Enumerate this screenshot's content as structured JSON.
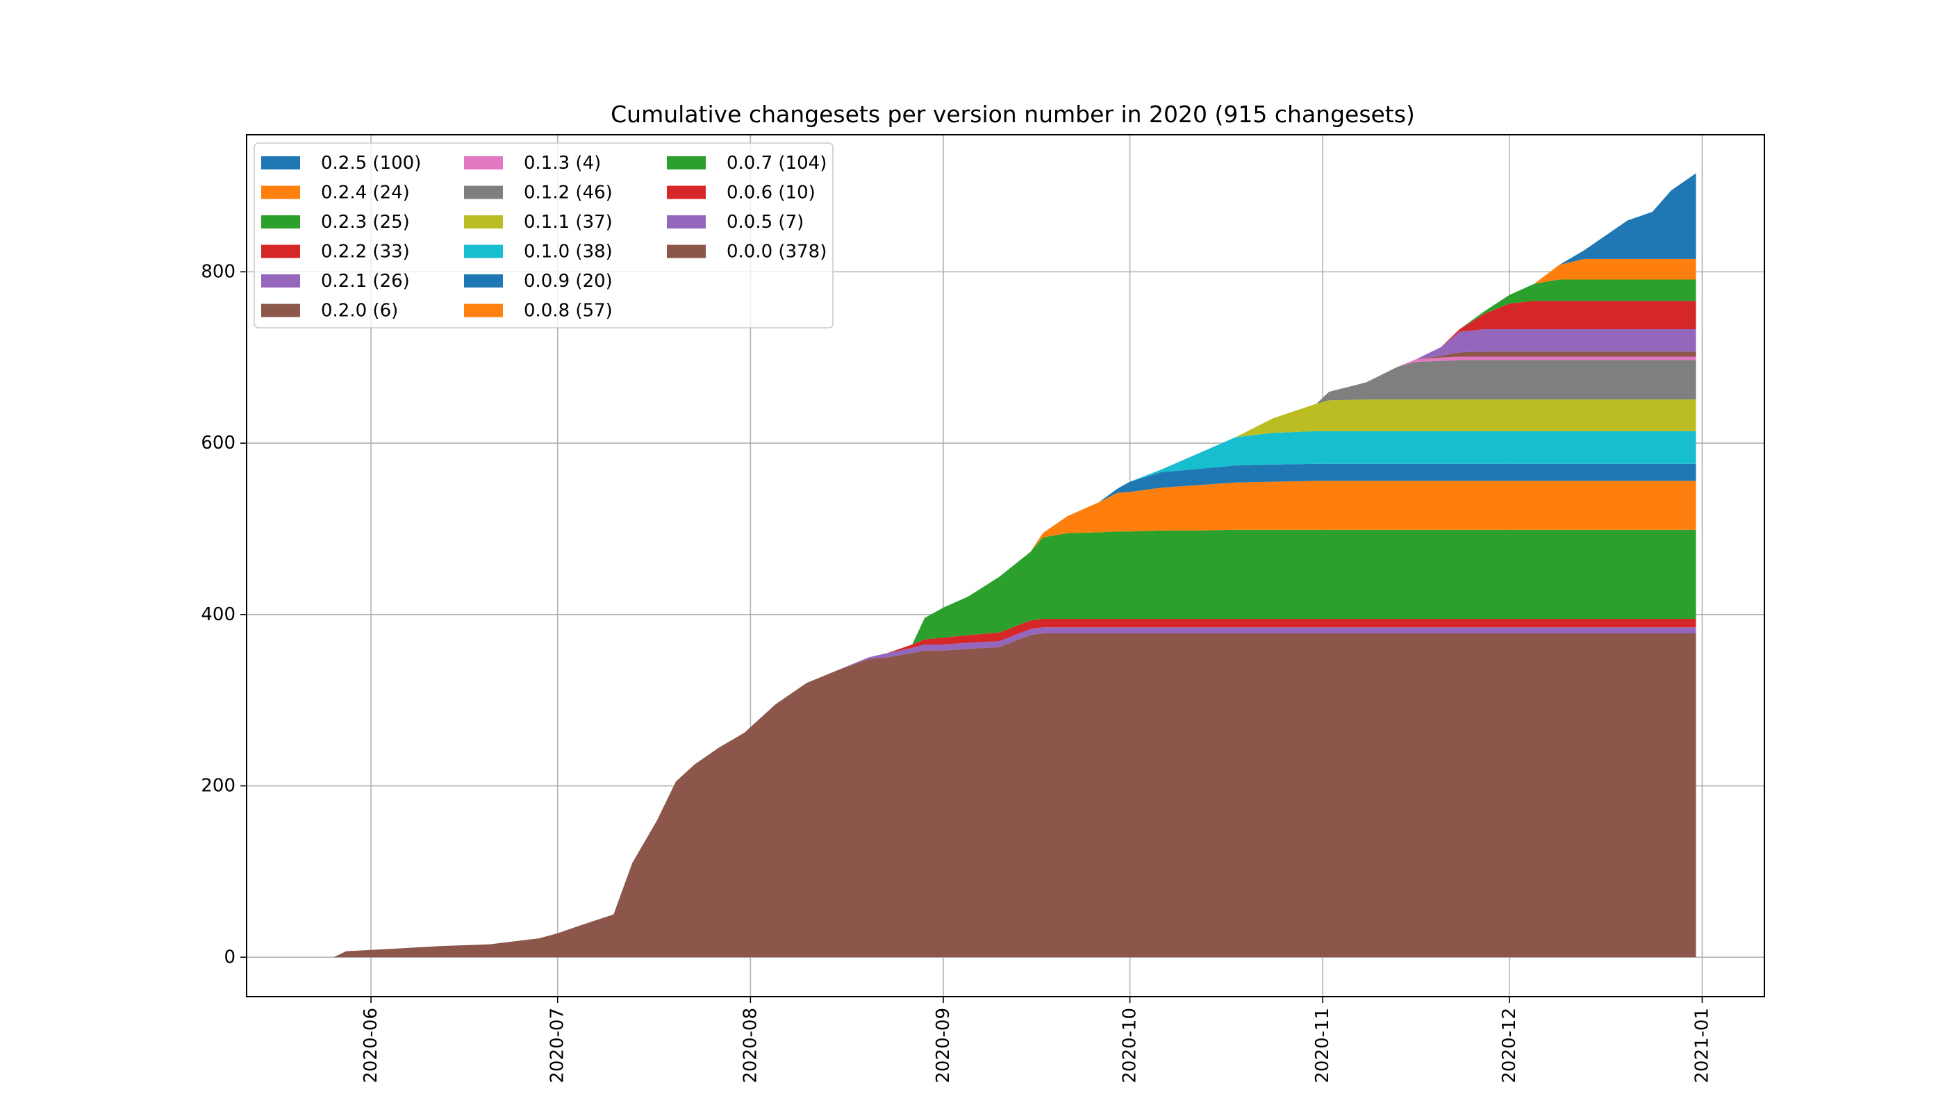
{
  "chart_data": {
    "type": "area",
    "stacked": true,
    "title": "Cumulative changesets per version number in 2020 (915 changesets)",
    "xlabel": "",
    "ylabel": "",
    "x_type": "date",
    "xlim": [
      "2020-05-12",
      "2021-01-11"
    ],
    "ylim": [
      -46,
      960
    ],
    "x_ticks": [
      "2020-06-01",
      "2020-07-01",
      "2020-08-01",
      "2020-09-01",
      "2020-10-01",
      "2020-11-01",
      "2020-12-01",
      "2021-01-01"
    ],
    "x_tick_labels": [
      "2020-06",
      "2020-07",
      "2020-08",
      "2020-09",
      "2020-10",
      "2020-11",
      "2020-12",
      "2021-01"
    ],
    "y_ticks": [
      0,
      200,
      400,
      600,
      800
    ],
    "y_tick_labels": [
      "0",
      "200",
      "400",
      "600",
      "800"
    ],
    "grid": true,
    "legend_position": "top-left",
    "legend_columns": 3,
    "x": [
      "2020-05-26",
      "2020-05-28",
      "2020-06-05",
      "2020-06-12",
      "2020-06-20",
      "2020-06-28",
      "2020-07-01",
      "2020-07-05",
      "2020-07-10",
      "2020-07-13",
      "2020-07-17",
      "2020-07-20",
      "2020-07-23",
      "2020-07-27",
      "2020-07-31",
      "2020-08-05",
      "2020-08-10",
      "2020-08-15",
      "2020-08-20",
      "2020-08-23",
      "2020-08-27",
      "2020-08-29",
      "2020-09-01",
      "2020-09-05",
      "2020-09-10",
      "2020-09-15",
      "2020-09-17",
      "2020-09-21",
      "2020-09-26",
      "2020-09-29",
      "2020-10-01",
      "2020-10-06",
      "2020-10-12",
      "2020-10-18",
      "2020-10-24",
      "2020-10-31",
      "2020-11-02",
      "2020-11-08",
      "2020-11-13",
      "2020-11-16",
      "2020-11-20",
      "2020-11-23",
      "2020-11-27",
      "2020-12-01",
      "2020-12-05",
      "2020-12-09",
      "2020-12-13",
      "2020-12-17",
      "2020-12-20",
      "2020-12-24",
      "2020-12-27",
      "2020-12-31"
    ],
    "series": [
      {
        "name": "0.0.0 (378)",
        "color": "#8c564b",
        "values": [
          0,
          7,
          10,
          13,
          15,
          22,
          28,
          38,
          50,
          110,
          160,
          205,
          225,
          245,
          262,
          295,
          320,
          335,
          348,
          350,
          355,
          358,
          358,
          360,
          362,
          376,
          378,
          378,
          378,
          378,
          378,
          378,
          378,
          378,
          378,
          378,
          378,
          378,
          378,
          378,
          378,
          378,
          378,
          378,
          378,
          378,
          378,
          378,
          378,
          378,
          378,
          378
        ]
      },
      {
        "name": "0.0.5 (7)",
        "color": "#9467bd",
        "values": [
          0,
          0,
          0,
          0,
          0,
          0,
          0,
          0,
          0,
          0,
          0,
          0,
          0,
          0,
          0,
          0,
          0,
          0,
          2,
          5,
          6,
          7,
          7,
          7,
          7,
          7,
          7,
          7,
          7,
          7,
          7,
          7,
          7,
          7,
          7,
          7,
          7,
          7,
          7,
          7,
          7,
          7,
          7,
          7,
          7,
          7,
          7,
          7,
          7,
          7,
          7,
          7
        ]
      },
      {
        "name": "0.0.6 (10)",
        "color": "#d62728",
        "values": [
          0,
          0,
          0,
          0,
          0,
          0,
          0,
          0,
          0,
          0,
          0,
          0,
          0,
          0,
          0,
          0,
          0,
          0,
          0,
          0,
          4,
          6,
          8,
          9,
          10,
          10,
          10,
          10,
          10,
          10,
          10,
          10,
          10,
          10,
          10,
          10,
          10,
          10,
          10,
          10,
          10,
          10,
          10,
          10,
          10,
          10,
          10,
          10,
          10,
          10,
          10,
          10
        ]
      },
      {
        "name": "0.0.7 (104)",
        "color": "#2ca02c",
        "values": [
          0,
          0,
          0,
          0,
          0,
          0,
          0,
          0,
          0,
          0,
          0,
          0,
          0,
          0,
          0,
          0,
          0,
          0,
          0,
          0,
          0,
          25,
          35,
          45,
          65,
          80,
          95,
          100,
          101,
          102,
          102,
          103,
          103,
          104,
          104,
          104,
          104,
          104,
          104,
          104,
          104,
          104,
          104,
          104,
          104,
          104,
          104,
          104,
          104,
          104,
          104,
          104
        ]
      },
      {
        "name": "0.0.8 (57)",
        "color": "#ff7f0e",
        "values": [
          0,
          0,
          0,
          0,
          0,
          0,
          0,
          0,
          0,
          0,
          0,
          0,
          0,
          0,
          0,
          0,
          0,
          0,
          0,
          0,
          0,
          0,
          0,
          0,
          0,
          0,
          5,
          20,
          35,
          45,
          46,
          50,
          53,
          55,
          56,
          57,
          57,
          57,
          57,
          57,
          57,
          57,
          57,
          57,
          57,
          57,
          57,
          57,
          57,
          57,
          57,
          57
        ]
      },
      {
        "name": "0.0.9 (20)",
        "color": "#1f77b4",
        "values": [
          0,
          0,
          0,
          0,
          0,
          0,
          0,
          0,
          0,
          0,
          0,
          0,
          0,
          0,
          0,
          0,
          0,
          0,
          0,
          0,
          0,
          0,
          0,
          0,
          0,
          0,
          0,
          0,
          0,
          5,
          12,
          18,
          19,
          20,
          20,
          20,
          20,
          20,
          20,
          20,
          20,
          20,
          20,
          20,
          20,
          20,
          20,
          20,
          20,
          20,
          20,
          20
        ]
      },
      {
        "name": "0.1.0 (38)",
        "color": "#17becf",
        "values": [
          0,
          0,
          0,
          0,
          0,
          0,
          0,
          0,
          0,
          0,
          0,
          0,
          0,
          0,
          0,
          0,
          0,
          0,
          0,
          0,
          0,
          0,
          0,
          0,
          0,
          0,
          0,
          0,
          0,
          0,
          0,
          3,
          18,
          33,
          37,
          38,
          38,
          38,
          38,
          38,
          38,
          38,
          38,
          38,
          38,
          38,
          38,
          38,
          38,
          38,
          38,
          38
        ]
      },
      {
        "name": "0.1.1 (37)",
        "color": "#bcbd22",
        "values": [
          0,
          0,
          0,
          0,
          0,
          0,
          0,
          0,
          0,
          0,
          0,
          0,
          0,
          0,
          0,
          0,
          0,
          0,
          0,
          0,
          0,
          0,
          0,
          0,
          0,
          0,
          0,
          0,
          0,
          0,
          0,
          0,
          0,
          0,
          17,
          32,
          36,
          37,
          37,
          37,
          37,
          37,
          37,
          37,
          37,
          37,
          37,
          37,
          37,
          37,
          37,
          37
        ]
      },
      {
        "name": "0.1.2 (46)",
        "color": "#7f7f7f",
        "values": [
          0,
          0,
          0,
          0,
          0,
          0,
          0,
          0,
          0,
          0,
          0,
          0,
          0,
          0,
          0,
          0,
          0,
          0,
          0,
          0,
          0,
          0,
          0,
          0,
          0,
          0,
          0,
          0,
          0,
          0,
          0,
          0,
          0,
          0,
          0,
          0,
          10,
          20,
          38,
          44,
          45,
          46,
          46,
          46,
          46,
          46,
          46,
          46,
          46,
          46,
          46,
          46
        ]
      },
      {
        "name": "0.1.3 (4)",
        "color": "#e377c2",
        "values": [
          0,
          0,
          0,
          0,
          0,
          0,
          0,
          0,
          0,
          0,
          0,
          0,
          0,
          0,
          0,
          0,
          0,
          0,
          0,
          0,
          0,
          0,
          0,
          0,
          0,
          0,
          0,
          0,
          0,
          0,
          0,
          0,
          0,
          0,
          0,
          0,
          0,
          0,
          0,
          3,
          4,
          4,
          4,
          4,
          4,
          4,
          4,
          4,
          4,
          4,
          4,
          4
        ]
      },
      {
        "name": "0.2.0 (6)",
        "color": "#8c564b",
        "values": [
          0,
          0,
          0,
          0,
          0,
          0,
          0,
          0,
          0,
          0,
          0,
          0,
          0,
          0,
          0,
          0,
          0,
          0,
          0,
          0,
          0,
          0,
          0,
          0,
          0,
          0,
          0,
          0,
          0,
          0,
          0,
          0,
          0,
          0,
          0,
          0,
          0,
          0,
          0,
          0,
          2,
          5,
          6,
          6,
          6,
          6,
          6,
          6,
          6,
          6,
          6,
          6
        ]
      },
      {
        "name": "0.2.1 (26)",
        "color": "#9467bd",
        "values": [
          0,
          0,
          0,
          0,
          0,
          0,
          0,
          0,
          0,
          0,
          0,
          0,
          0,
          0,
          0,
          0,
          0,
          0,
          0,
          0,
          0,
          0,
          0,
          0,
          0,
          0,
          0,
          0,
          0,
          0,
          0,
          0,
          0,
          0,
          0,
          0,
          0,
          0,
          0,
          0,
          10,
          24,
          26,
          26,
          26,
          26,
          26,
          26,
          26,
          26,
          26,
          26
        ]
      },
      {
        "name": "0.2.2 (33)",
        "color": "#d62728",
        "values": [
          0,
          0,
          0,
          0,
          0,
          0,
          0,
          0,
          0,
          0,
          0,
          0,
          0,
          0,
          0,
          0,
          0,
          0,
          0,
          0,
          0,
          0,
          0,
          0,
          0,
          0,
          0,
          0,
          0,
          0,
          0,
          0,
          0,
          0,
          0,
          0,
          0,
          0,
          0,
          0,
          0,
          3,
          18,
          30,
          33,
          33,
          33,
          33,
          33,
          33,
          33,
          33
        ]
      },
      {
        "name": "0.2.3 (25)",
        "color": "#2ca02c",
        "values": [
          0,
          0,
          0,
          0,
          0,
          0,
          0,
          0,
          0,
          0,
          0,
          0,
          0,
          0,
          0,
          0,
          0,
          0,
          0,
          0,
          0,
          0,
          0,
          0,
          0,
          0,
          0,
          0,
          0,
          0,
          0,
          0,
          0,
          0,
          0,
          0,
          0,
          0,
          0,
          0,
          0,
          0,
          3,
          10,
          20,
          25,
          25,
          25,
          25,
          25,
          25,
          25
        ]
      },
      {
        "name": "0.2.4 (24)",
        "color": "#ff7f0e",
        "values": [
          0,
          0,
          0,
          0,
          0,
          0,
          0,
          0,
          0,
          0,
          0,
          0,
          0,
          0,
          0,
          0,
          0,
          0,
          0,
          0,
          0,
          0,
          0,
          0,
          0,
          0,
          0,
          0,
          0,
          0,
          0,
          0,
          0,
          0,
          0,
          0,
          0,
          0,
          0,
          0,
          0,
          0,
          0,
          0,
          0,
          17,
          24,
          24,
          24,
          24,
          24,
          24
        ]
      },
      {
        "name": "0.2.5 (100)",
        "color": "#1f77b4",
        "values": [
          0,
          0,
          0,
          0,
          0,
          0,
          0,
          0,
          0,
          0,
          0,
          0,
          0,
          0,
          0,
          0,
          0,
          0,
          0,
          0,
          0,
          0,
          0,
          0,
          0,
          0,
          0,
          0,
          0,
          0,
          0,
          0,
          0,
          0,
          0,
          0,
          0,
          0,
          0,
          0,
          0,
          0,
          0,
          0,
          0,
          0,
          10,
          30,
          45,
          55,
          80,
          100
        ]
      }
    ],
    "legend_order": [
      "0.2.5 (100)",
      "0.2.4 (24)",
      "0.2.3 (25)",
      "0.2.2 (33)",
      "0.2.1 (26)",
      "0.2.0 (6)",
      "0.1.3 (4)",
      "0.1.2 (46)",
      "0.1.1 (37)",
      "0.1.0 (38)",
      "0.0.9 (20)",
      "0.0.8 (57)",
      "0.0.7 (104)",
      "0.0.6 (10)",
      "0.0.5 (7)",
      "0.0.0 (378)"
    ]
  }
}
